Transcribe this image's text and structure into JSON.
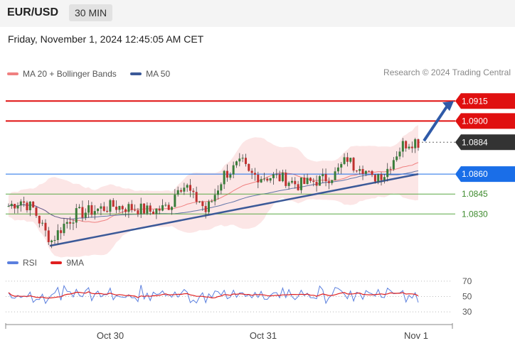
{
  "header": {
    "symbol": "EUR/USD",
    "timeframe": "30 MIN",
    "datetime": "Friday, November 1, 2024 12:45:05 AM CET"
  },
  "legend": {
    "ma20_label": "MA 20 + Bollinger Bands",
    "ma20_color": "#f08080",
    "ma50_label": "MA 50",
    "ma50_color": "#3b5998",
    "credit": "Research © 2024 Trading Central"
  },
  "rsi_legend": {
    "rsi_label": "RSI",
    "rsi_color": "#5b7fde",
    "ma9_label": "9MA",
    "ma9_color": "#e02020"
  },
  "chart_data": {
    "type": "candlestick",
    "price_range": [
      1.0805,
      1.0928
    ],
    "levels": [
      {
        "value": "1.0915",
        "style": "resistance",
        "color": "#e01010"
      },
      {
        "value": "1.0900",
        "style": "resistance",
        "color": "#e01010"
      },
      {
        "value": "1.0884",
        "style": "current",
        "color": "#333333"
      },
      {
        "value": "1.0860",
        "style": "pivot",
        "color": "#1a6ee8"
      },
      {
        "value": "1.0845",
        "style": "support",
        "color": "#5aa845"
      },
      {
        "value": "1.0830",
        "style": "support",
        "color": "#5aa845"
      }
    ],
    "x_labels": [
      "Oct 30",
      "Oct 31",
      "Nov 1"
    ],
    "trendline": {
      "from": 1.0806,
      "to": 1.086
    },
    "forecast_arrow": {
      "from": 1.0884,
      "to": 1.0915
    },
    "rsi": {
      "levels": [
        "70",
        "50",
        "30"
      ],
      "range": [
        20,
        80
      ]
    }
  }
}
